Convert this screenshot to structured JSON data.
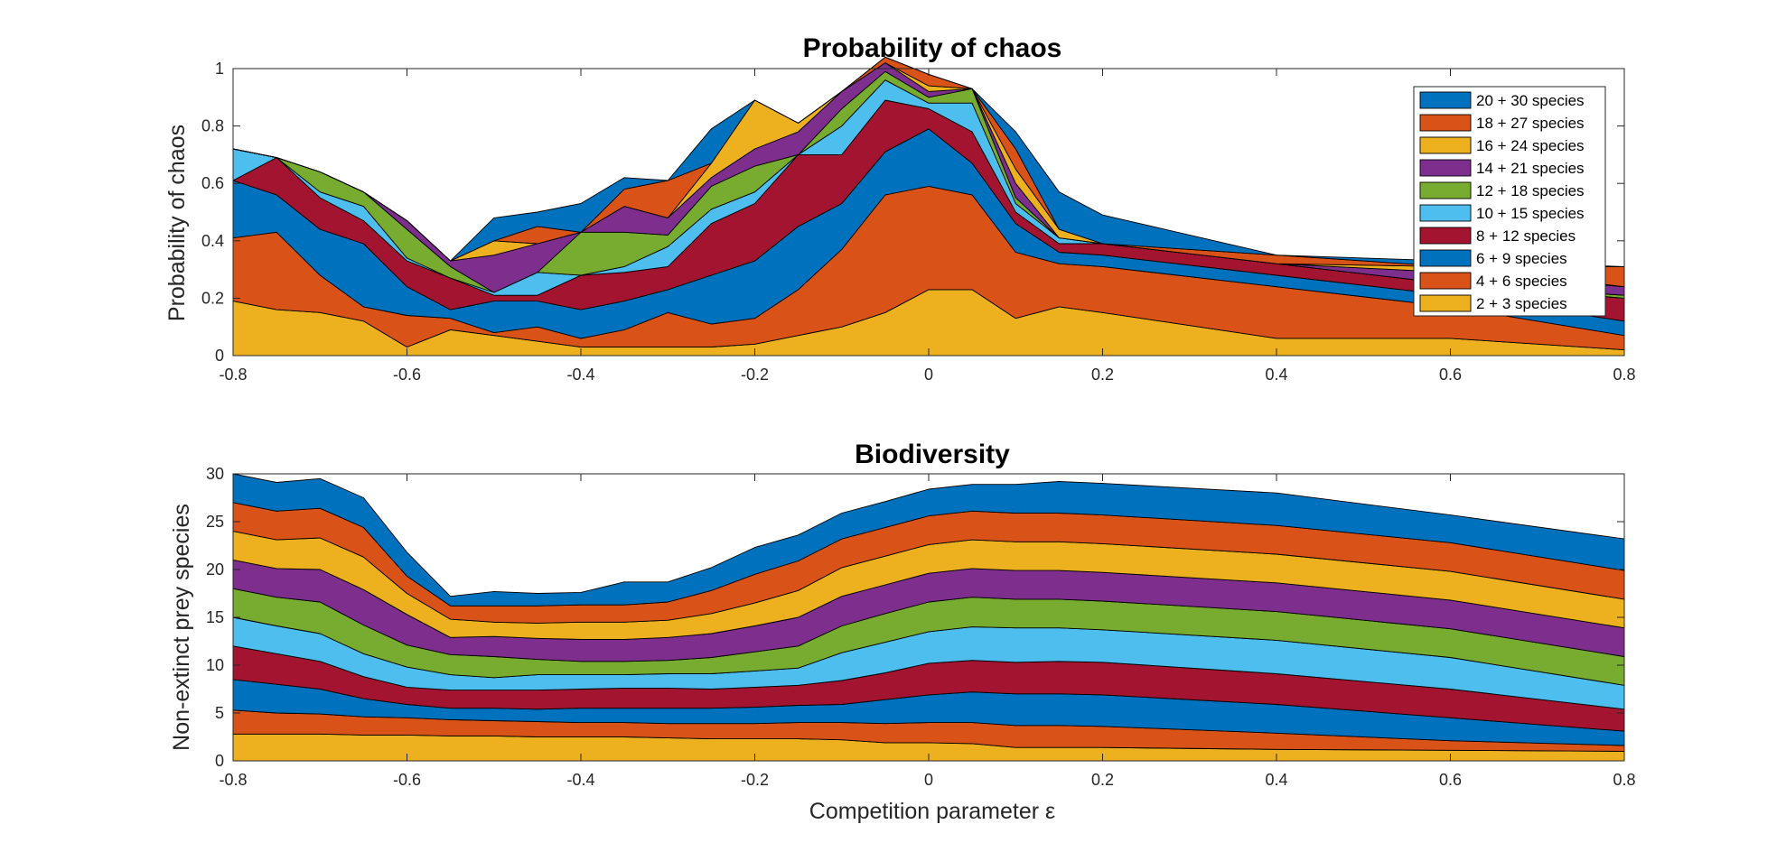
{
  "colors": [
    "#EDB120",
    "#D95319",
    "#0072BD",
    "#A2142F",
    "#4DBEEE",
    "#77AC30",
    "#7E2F8E",
    "#EDB120",
    "#D95319",
    "#0072BD"
  ],
  "legend": [
    "20 + 30 species",
    "18 + 27 species",
    "16 + 24 species",
    "14 + 21 species",
    "12 + 18 species",
    "10 + 15 species",
    "8 + 12 species",
    "6 + 9 species",
    "4 + 6 species",
    "2 + 3 species"
  ],
  "chart_data": [
    {
      "type": "area",
      "title": "Probability of chaos",
      "ylabel": "Probability of chaos",
      "xlabel": "",
      "xlim": [
        -0.8,
        0.8
      ],
      "ylim": [
        0,
        1
      ],
      "xticks": [
        "-0.8",
        "-0.6",
        "-0.4",
        "-0.2",
        "0",
        "0.2",
        "0.4",
        "0.6",
        "0.8"
      ],
      "yticks": [
        "0",
        "0.2",
        "0.4",
        "0.6",
        "0.8",
        "1"
      ],
      "legend_position": "top-right",
      "x": [
        -0.8,
        -0.75,
        -0.7,
        -0.65,
        -0.6,
        -0.55,
        -0.5,
        -0.45,
        -0.4,
        -0.35,
        -0.3,
        -0.25,
        -0.2,
        -0.15,
        -0.1,
        -0.05,
        0,
        0.05,
        0.1,
        0.15,
        0.2,
        0.4,
        0.6,
        0.8
      ],
      "series": [
        {
          "name": "2 + 3 species",
          "values": [
            0.19,
            0.16,
            0.15,
            0.12,
            0.03,
            0.09,
            0.07,
            0.05,
            0.03,
            0.03,
            0.03,
            0.03,
            0.04,
            0.07,
            0.1,
            0.15,
            0.23,
            0.23,
            0.13,
            0.17,
            0.15,
            0.06,
            0.06,
            0.02
          ]
        },
        {
          "name": "4 + 6 species",
          "values": [
            0.22,
            0.27,
            0.13,
            0.05,
            0.11,
            0.04,
            0.01,
            0.05,
            0.03,
            0.06,
            0.12,
            0.08,
            0.09,
            0.16,
            0.27,
            0.41,
            0.36,
            0.33,
            0.23,
            0.15,
            0.16,
            0.18,
            0.11,
            0.05
          ]
        },
        {
          "name": "6 + 9 species",
          "values": [
            0.2,
            0.13,
            0.16,
            0.22,
            0.1,
            0.03,
            0.11,
            0.09,
            0.1,
            0.1,
            0.08,
            0.17,
            0.2,
            0.22,
            0.16,
            0.15,
            0.2,
            0.11,
            0.1,
            0.04,
            0.04,
            0.04,
            0.04,
            0.05
          ]
        },
        {
          "name": "8 + 12 species",
          "values": [
            0.0,
            0.13,
            0.11,
            0.08,
            0.09,
            0.11,
            0.02,
            0.02,
            0.12,
            0.1,
            0.08,
            0.18,
            0.2,
            0.25,
            0.17,
            0.18,
            0.07,
            0.11,
            0.04,
            0.03,
            0.04,
            0.04,
            0.04,
            0.08
          ]
        },
        {
          "name": "10 + 15 species",
          "values": [
            0.11,
            0.0,
            0.02,
            0.05,
            0.01,
            0.0,
            0.01,
            0.08,
            0.0,
            0.02,
            0.07,
            0.05,
            0.04,
            0.0,
            0.1,
            0.07,
            0.02,
            0.1,
            0.03,
            0.02,
            0.0,
            0.0,
            0.0,
            0.0
          ]
        },
        {
          "name": "12 + 18 species",
          "values": [
            0.0,
            0.0,
            0.07,
            0.05,
            0.1,
            0.04,
            0.0,
            0.0,
            0.15,
            0.12,
            0.04,
            0.08,
            0.09,
            0.0,
            0.06,
            0.03,
            0.02,
            0.05,
            0.02,
            0.0,
            0.0,
            0.0,
            0.0,
            0.01
          ]
        },
        {
          "name": "14 + 21 species",
          "values": [
            0.0,
            0.0,
            0.0,
            0.0,
            0.03,
            0.02,
            0.13,
            0.1,
            0.0,
            0.09,
            0.06,
            0.03,
            0.06,
            0.08,
            0.06,
            0.03,
            0.02,
            0.0,
            0.05,
            0.0,
            0.0,
            0.0,
            0.04,
            0.03
          ]
        },
        {
          "name": "16 + 24 species",
          "values": [
            0.0,
            0.0,
            0.0,
            0.0,
            0.0,
            0.0,
            0.05,
            0.0,
            0.0,
            0.0,
            0.0,
            0.05,
            0.17,
            0.03,
            0.0,
            0.0,
            0.02,
            0.0,
            0.05,
            0.03,
            0.0,
            0.0,
            0.02,
            0.0
          ]
        },
        {
          "name": "18 + 27 species",
          "values": [
            0.0,
            0.0,
            0.0,
            0.0,
            0.0,
            0.0,
            0.0,
            0.06,
            0.0,
            0.06,
            0.13,
            0.0,
            0.0,
            0.0,
            0.0,
            0.02,
            0.04,
            0.0,
            0.07,
            0.0,
            0.0,
            0.03,
            0.0,
            0.07
          ]
        },
        {
          "name": "20 + 30 species",
          "values": [
            0.0,
            0.0,
            0.0,
            0.0,
            0.0,
            0.0,
            0.08,
            0.05,
            0.1,
            0.04,
            0.0,
            0.12,
            0.0,
            0.0,
            0.0,
            0.0,
            0.0,
            0.0,
            0.06,
            0.13,
            0.1,
            0.0,
            0.02,
            0.0
          ]
        }
      ]
    },
    {
      "type": "area",
      "title": "Biodiversity",
      "ylabel": "Non-extinct prey species",
      "xlabel": "Competition parameter ε",
      "xlim": [
        -0.8,
        0.8
      ],
      "ylim": [
        0,
        30
      ],
      "xticks": [
        "-0.8",
        "-0.6",
        "-0.4",
        "-0.2",
        "0",
        "0.2",
        "0.4",
        "0.6",
        "0.8"
      ],
      "yticks": [
        "0",
        "5",
        "10",
        "15",
        "20",
        "25",
        "30"
      ],
      "x": [
        -0.8,
        -0.75,
        -0.7,
        -0.65,
        -0.6,
        -0.55,
        -0.5,
        -0.45,
        -0.4,
        -0.35,
        -0.3,
        -0.25,
        -0.2,
        -0.15,
        -0.1,
        -0.05,
        0,
        0.05,
        0.1,
        0.15,
        0.2,
        0.4,
        0.6,
        0.8
      ],
      "series": [
        {
          "name": "2 + 3 species",
          "values": [
            2.8,
            2.8,
            2.8,
            2.7,
            2.7,
            2.6,
            2.6,
            2.5,
            2.5,
            2.5,
            2.4,
            2.3,
            2.3,
            2.3,
            2.2,
            1.9,
            1.9,
            1.8,
            1.4,
            1.4,
            1.4,
            1.2,
            1.1,
            1.0
          ]
        },
        {
          "name": "4 + 6 species",
          "values": [
            2.5,
            2.2,
            2.1,
            1.9,
            1.8,
            1.7,
            1.6,
            1.6,
            1.5,
            1.5,
            1.5,
            1.6,
            1.6,
            1.7,
            1.8,
            2.0,
            2.1,
            2.2,
            2.3,
            2.3,
            2.2,
            1.7,
            1.0,
            0.6
          ]
        },
        {
          "name": "6 + 9 species",
          "values": [
            3.2,
            3.0,
            2.6,
            1.9,
            1.4,
            1.2,
            1.3,
            1.3,
            1.5,
            1.5,
            1.6,
            1.6,
            1.7,
            1.8,
            1.9,
            2.5,
            2.9,
            3.2,
            3.3,
            3.3,
            3.3,
            3.0,
            2.4,
            1.5
          ]
        },
        {
          "name": "8 + 12 species",
          "values": [
            3.5,
            3.2,
            2.9,
            2.3,
            1.8,
            1.9,
            1.9,
            2.0,
            2.0,
            2.1,
            2.1,
            2.0,
            2.1,
            2.1,
            2.5,
            2.8,
            3.3,
            3.3,
            3.3,
            3.4,
            3.4,
            3.2,
            3.0,
            2.3
          ]
        },
        {
          "name": "10 + 15 species",
          "values": [
            3.0,
            2.9,
            2.9,
            2.4,
            2.1,
            1.6,
            1.3,
            1.6,
            1.5,
            1.4,
            1.5,
            1.6,
            1.7,
            1.8,
            2.9,
            3.2,
            3.3,
            3.5,
            3.6,
            3.5,
            3.4,
            3.5,
            3.3,
            2.5
          ]
        },
        {
          "name": "12 + 18 species",
          "values": [
            3.0,
            3.0,
            3.3,
            3.0,
            2.3,
            2.1,
            2.2,
            1.6,
            1.4,
            1.4,
            1.4,
            1.7,
            2.0,
            2.3,
            2.8,
            3.0,
            3.1,
            3.1,
            3.0,
            3.0,
            3.0,
            3.0,
            3.0,
            3.0
          ]
        },
        {
          "name": "14 + 21 species",
          "values": [
            3.0,
            3.0,
            3.4,
            3.7,
            3.2,
            1.8,
            2.1,
            2.2,
            2.3,
            2.3,
            2.4,
            2.5,
            2.7,
            3.0,
            3.1,
            3.0,
            3.0,
            3.0,
            3.0,
            3.0,
            3.0,
            3.0,
            3.0,
            3.0
          ]
        },
        {
          "name": "16 + 24 species",
          "values": [
            3.0,
            3.0,
            3.3,
            3.4,
            2.2,
            1.9,
            1.5,
            1.6,
            1.8,
            1.8,
            1.8,
            2.1,
            2.4,
            2.8,
            3.0,
            3.0,
            3.0,
            3.0,
            3.0,
            3.0,
            3.0,
            3.0,
            3.0,
            3.0
          ]
        },
        {
          "name": "18 + 27 species",
          "values": [
            3.0,
            3.0,
            3.1,
            3.1,
            1.8,
            1.4,
            1.7,
            1.8,
            1.8,
            1.8,
            1.9,
            2.4,
            3.0,
            3.1,
            3.0,
            3.0,
            3.0,
            3.0,
            3.0,
            3.0,
            3.0,
            3.0,
            3.0,
            3.0
          ]
        },
        {
          "name": "20 + 30 species",
          "values": [
            3.0,
            3.0,
            3.1,
            3.1,
            2.5,
            1.0,
            1.5,
            1.3,
            1.3,
            2.4,
            2.1,
            2.4,
            2.8,
            2.7,
            2.7,
            2.7,
            2.8,
            2.8,
            3.0,
            3.3,
            3.3,
            3.4,
            2.9,
            3.3
          ]
        }
      ]
    }
  ]
}
